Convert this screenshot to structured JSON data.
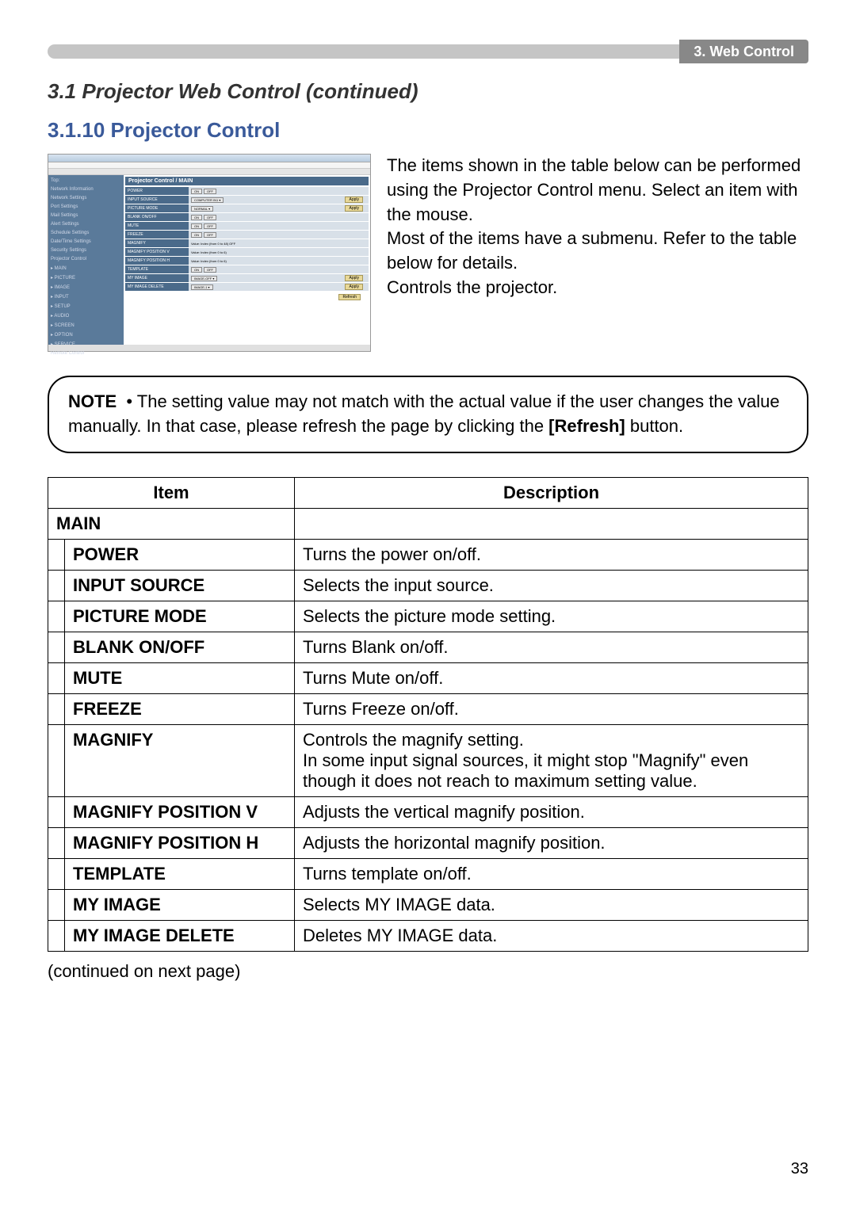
{
  "topBar": {
    "label": "3. Web Control"
  },
  "sectionTitle": "3.1 Projector Web Control (continued)",
  "subsectionTitle": "3.1.10 Projector Control",
  "screenshot": {
    "header": "Projector Control / MAIN",
    "sidebarItems": [
      "Top:",
      "Network Information",
      "Network Settings",
      "Port Settings",
      "Mail Settings",
      "Alert Settings",
      "Schedule Settings",
      "Date/Time Settings",
      "Security Settings",
      "Projector Control",
      "▸ MAIN",
      "▸ PICTURE",
      "▸ IMAGE",
      "▸ INPUT",
      "▸ SETUP",
      "▸ AUDIO",
      "▸ SCREEN",
      "▸ OPTION",
      "▸ SERVICE",
      "Remote Control"
    ],
    "rows": [
      {
        "label": "POWER",
        "buttons": [
          "ON",
          "OFF"
        ]
      },
      {
        "label": "INPUT SOURCE",
        "select": "COMPUTER IN1",
        "apply": "Apply"
      },
      {
        "label": "PICTURE MODE",
        "select": "NORMAL",
        "apply": "Apply"
      },
      {
        "label": "BLANK ON/OFF",
        "buttons": [
          "ON",
          "OFF"
        ]
      },
      {
        "label": "MUTE",
        "buttons": [
          "ON",
          "OFF"
        ]
      },
      {
        "label": "FREEZE",
        "buttons": [
          "ON",
          "OFF"
        ]
      },
      {
        "label": "MAGNIFY",
        "text": "Value:     Index  (from 0 to 48)  OFF"
      },
      {
        "label": "MAGNIFY POSITION V",
        "text": "Value:     Index  (from 0 to 6)"
      },
      {
        "label": "MAGNIFY POSITION H",
        "text": "Value:     Index  (from 0 to 6)"
      },
      {
        "label": "TEMPLATE",
        "buttons": [
          "ON",
          "OFF"
        ]
      },
      {
        "label": "MY IMAGE",
        "select": "IMAGE-OFF",
        "apply": "Apply"
      },
      {
        "label": "MY IMAGE DELETE",
        "select": "IMAGE-1",
        "apply": "Apply"
      }
    ],
    "refreshBtn": "Refresh"
  },
  "description": {
    "line1": "The items shown in the table below can be performed using the Projector Control menu. Select an item with the mouse.",
    "line2": "Most of the items have a submenu. Refer to the table below for details.",
    "line3": "Controls the projector."
  },
  "note": {
    "label": "NOTE",
    "bullet": "•",
    "text1": "The setting value may not match with the actual value if the user changes the value manually. In that case, please refresh the page by clicking the ",
    "refresh": "[Refresh]",
    "text2": " button."
  },
  "table": {
    "headers": {
      "item": "Item",
      "description": "Description"
    },
    "mainLabel": "MAIN",
    "rows": [
      {
        "item": "POWER",
        "desc": "Turns the power on/off."
      },
      {
        "item": "INPUT SOURCE",
        "desc": "Selects the input source."
      },
      {
        "item": "PICTURE MODE",
        "desc": "Selects the picture mode setting."
      },
      {
        "item": "BLANK ON/OFF",
        "desc": "Turns Blank on/off."
      },
      {
        "item": "MUTE",
        "desc": "Turns Mute on/off."
      },
      {
        "item": "FREEZE",
        "desc": "Turns Freeze on/off."
      },
      {
        "item": "MAGNIFY",
        "desc": "Controls the magnify setting.\nIn some input signal sources, it might stop \"Magnify\" even though it does not reach to maximum setting value."
      },
      {
        "item": "MAGNIFY POSITION V",
        "desc": "Adjusts the vertical magnify position."
      },
      {
        "item": "MAGNIFY POSITION H",
        "desc": "Adjusts the horizontal magnify position."
      },
      {
        "item": "TEMPLATE",
        "desc": "Turns template on/off."
      },
      {
        "item": "MY IMAGE",
        "desc": "Selects MY IMAGE data."
      },
      {
        "item": "MY IMAGE DELETE",
        "desc": "Deletes MY IMAGE data."
      }
    ]
  },
  "continued": "(continued on next page)",
  "pageNumber": "33"
}
